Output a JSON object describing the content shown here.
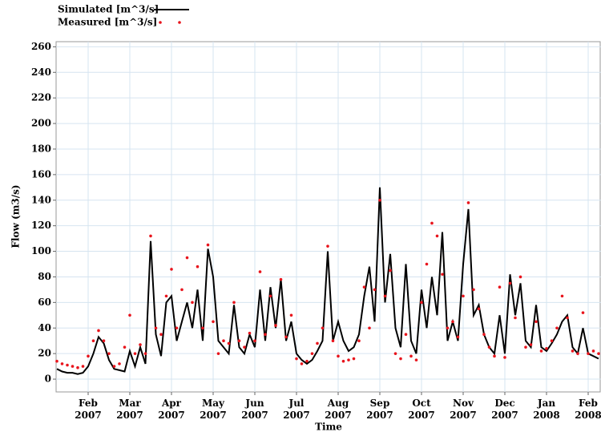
{
  "chart_data": {
    "type": "line",
    "y_label": "Flow (m3/s)",
    "x_label": "Time",
    "categories": [
      null,
      null,
      null,
      null,
      null,
      null,
      "Feb\n2007",
      null,
      null,
      null,
      null,
      null,
      null,
      null,
      "Mar\n2007",
      null,
      null,
      null,
      null,
      null,
      null,
      null,
      "Apr\n2007",
      null,
      null,
      null,
      null,
      null,
      null,
      null,
      "May\n2007",
      null,
      null,
      null,
      null,
      null,
      null,
      null,
      "Jun\n2007",
      null,
      null,
      null,
      null,
      null,
      null,
      null,
      "Jul\n2007",
      null,
      null,
      null,
      null,
      null,
      null,
      null,
      "Aug\n2007",
      null,
      null,
      null,
      null,
      null,
      null,
      null,
      "Sep\n2007",
      null,
      null,
      null,
      null,
      null,
      null,
      null,
      "Oct\n2007",
      null,
      null,
      null,
      null,
      null,
      null,
      null,
      "Nov\n2007",
      null,
      null,
      null,
      null,
      null,
      null,
      null,
      "Dec\n2007",
      null,
      null,
      null,
      null,
      null,
      null,
      null,
      "Jan\n2008",
      null,
      null,
      null,
      null,
      null,
      null,
      null,
      "Feb\n2008",
      null,
      null
    ],
    "series": [
      {
        "name": "Simulated [m^3/s]",
        "style": "line",
        "color": "#000000",
        "values": [
          8,
          6,
          5,
          5,
          4,
          5,
          10,
          20,
          33,
          28,
          15,
          8,
          7,
          6,
          22,
          10,
          25,
          12,
          108,
          35,
          18,
          60,
          65,
          30,
          45,
          60,
          40,
          70,
          30,
          102,
          80,
          30,
          25,
          20,
          58,
          25,
          20,
          35,
          25,
          70,
          30,
          72,
          40,
          78,
          30,
          45,
          20,
          15,
          12,
          15,
          22,
          30,
          100,
          30,
          45,
          30,
          22,
          25,
          35,
          65,
          88,
          45,
          150,
          60,
          98,
          40,
          25,
          90,
          30,
          20,
          70,
          40,
          80,
          50,
          115,
          30,
          45,
          30,
          90,
          133,
          50,
          58,
          35,
          25,
          20,
          50,
          20,
          82,
          50,
          75,
          30,
          25,
          58,
          25,
          22,
          28,
          35,
          45,
          50,
          25,
          20,
          40,
          20,
          18,
          16
        ]
      },
      {
        "name": "Measured [m^3/s]",
        "style": "points",
        "color": "#e8141c",
        "values": [
          14,
          12,
          11,
          10,
          9,
          10,
          18,
          30,
          38,
          30,
          20,
          10,
          12,
          25,
          50,
          20,
          27,
          20,
          112,
          40,
          35,
          65,
          86,
          40,
          70,
          95,
          60,
          88,
          40,
          105,
          45,
          20,
          30,
          28,
          60,
          30,
          25,
          36,
          30,
          84,
          35,
          65,
          42,
          78,
          33,
          50,
          16,
          12,
          14,
          20,
          28,
          40,
          104,
          30,
          18,
          14,
          15,
          16,
          30,
          72,
          40,
          70,
          140,
          65,
          85,
          20,
          16,
          35,
          18,
          15,
          60,
          90,
          122,
          112,
          82,
          40,
          45,
          33,
          65,
          138,
          70,
          55,
          35,
          25,
          18,
          72,
          17,
          75,
          48,
          80,
          25,
          27,
          45,
          22,
          24,
          30,
          40,
          65,
          48,
          22,
          20,
          52,
          20,
          22,
          20
        ]
      }
    ],
    "ylim": [
      -10,
      264
    ],
    "yticks": [
      0,
      20,
      40,
      60,
      80,
      100,
      120,
      140,
      160,
      180,
      200,
      220,
      240,
      260
    ],
    "grid": true,
    "legend": "top-left"
  }
}
